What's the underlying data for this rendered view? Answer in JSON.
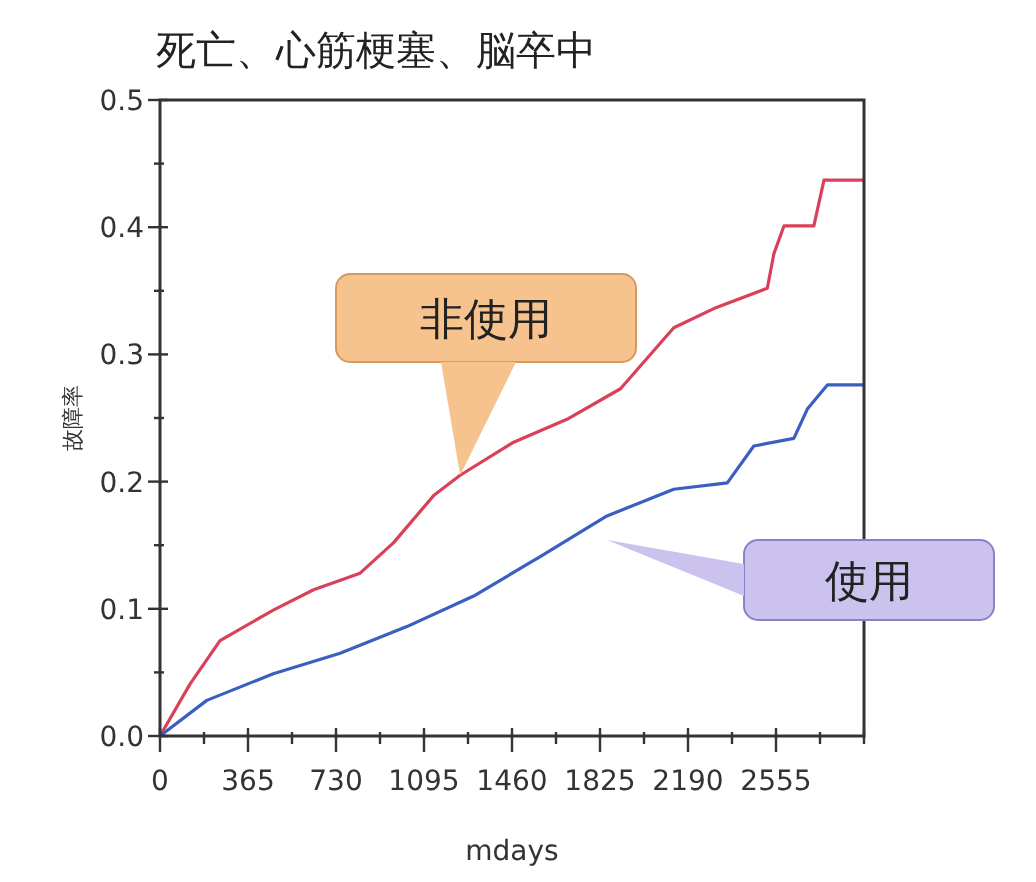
{
  "chart_data": {
    "type": "line",
    "title": "死亡、心筋梗塞、脳卒中",
    "xlabel": "mdays",
    "ylabel": "故障率",
    "xlim": [
      0,
      2920
    ],
    "ylim": [
      0,
      0.5
    ],
    "xticks": [
      0,
      {
        "value": 182.5,
        "label": null
      },
      365,
      {
        "value": 547.5,
        "label": null
      },
      730,
      {
        "value": 912.5,
        "label": null
      },
      1095,
      {
        "value": 1277.5,
        "label": null
      },
      1460,
      {
        "value": 1642.5,
        "label": null
      },
      1825,
      {
        "value": 2007.5,
        "label": null
      },
      2190,
      {
        "value": 2372.5,
        "label": null
      },
      2555,
      {
        "value": 2737.5,
        "label": null
      },
      {
        "value": 2920,
        "label": null
      }
    ],
    "yticks": [
      {
        "value": 0,
        "label": "0.0"
      },
      {
        "value": 0.05,
        "label": null
      },
      0.1,
      {
        "value": 0.15,
        "label": null
      },
      0.2,
      {
        "value": 0.25,
        "label": null
      },
      0.3,
      {
        "value": 0.35,
        "label": null
      },
      0.4,
      {
        "value": 0.45,
        "label": null
      },
      0.5
    ],
    "grid": false,
    "marker": "none",
    "line_style": "solid",
    "series": [
      {
        "name": "非使用",
        "color": "#d9405a",
        "x": [
          0,
          125,
          249,
          470,
          637,
          830,
          969,
          1135,
          1245,
          1467,
          1688,
          1910,
          2131,
          2297,
          2519,
          2546,
          2588,
          2712,
          2754,
          2920
        ],
        "values": [
          0,
          0.041,
          0.075,
          0.099,
          0.115,
          0.128,
          0.152,
          0.189,
          0.205,
          0.231,
          0.249,
          0.273,
          0.321,
          0.336,
          0.352,
          0.379,
          0.401,
          0.401,
          0.437,
          0.437
        ]
      },
      {
        "name": "使用",
        "color": "#3a5fc0",
        "x": [
          0,
          194,
          470,
          747,
          1024,
          1301,
          1577,
          1854,
          2131,
          2353,
          2463,
          2629,
          2685,
          2768,
          2920
        ],
        "values": [
          0,
          0.028,
          0.049,
          0.065,
          0.086,
          0.11,
          0.141,
          0.173,
          0.194,
          0.199,
          0.228,
          0.234,
          0.257,
          0.276,
          0.276
        ]
      }
    ]
  }
}
